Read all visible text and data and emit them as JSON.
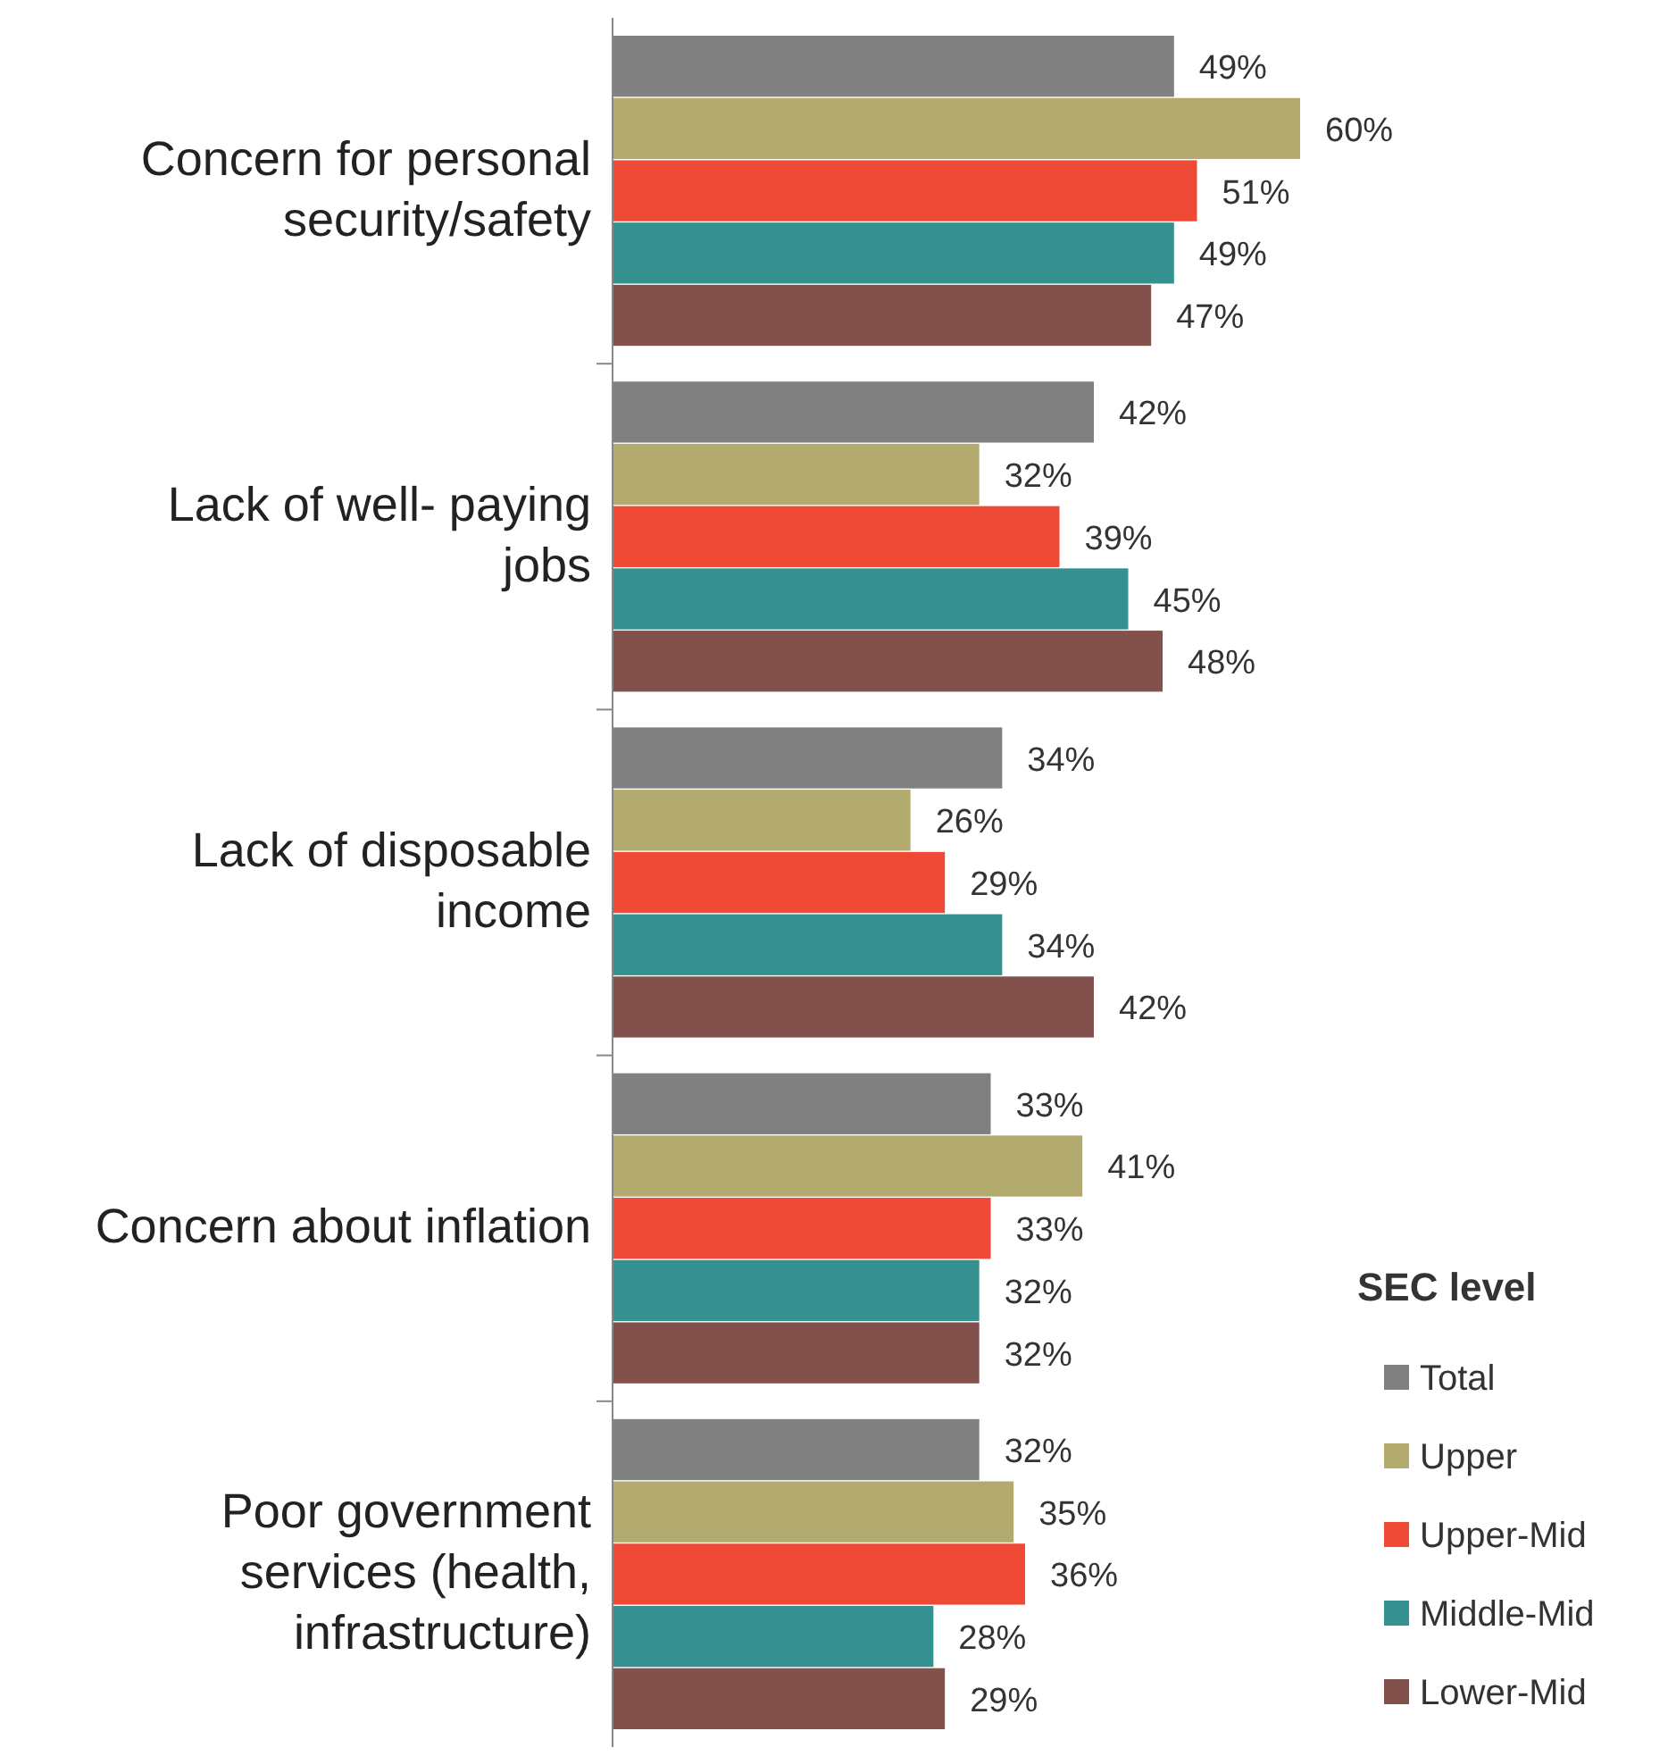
{
  "chart_data": {
    "type": "bar",
    "orientation": "horizontal",
    "categories": [
      "Concern for personal security/safety",
      "Lack of well- paying jobs",
      "Lack of disposable income",
      "Concern about inflation",
      "Poor government services (health, infrastructure)"
    ],
    "legend_title": "SEC level",
    "legend": "bottom right",
    "series": [
      {
        "name": "Total",
        "color": "#808080",
        "values": [
          49,
          42,
          34,
          33,
          32
        ],
        "value_labels": [
          "49%",
          "42%",
          "34%",
          "33%",
          "32%"
        ]
      },
      {
        "name": "Upper",
        "color": "#b2aa6e",
        "values": [
          60,
          32,
          26,
          41,
          35
        ],
        "value_labels": [
          "60%",
          "32%",
          "26%",
          "41%",
          "35%"
        ]
      },
      {
        "name": "Upper-Mid",
        "color": "#ee4a36",
        "values": [
          51,
          39,
          29,
          33,
          36
        ],
        "value_labels": [
          "51%",
          "39%",
          "29%",
          "33%",
          "36%"
        ]
      },
      {
        "name": "Middle-Mid",
        "color": "#35918f",
        "values": [
          49,
          45,
          34,
          32,
          28
        ],
        "value_labels": [
          "49%",
          "45%",
          "34%",
          "32%",
          "28%"
        ]
      },
      {
        "name": "Lower-Mid",
        "color": "#83514c",
        "values": [
          47,
          48,
          42,
          32,
          29
        ],
        "value_labels": [
          "47%",
          "48%",
          "42%",
          "32%",
          "29%"
        ]
      }
    ]
  }
}
